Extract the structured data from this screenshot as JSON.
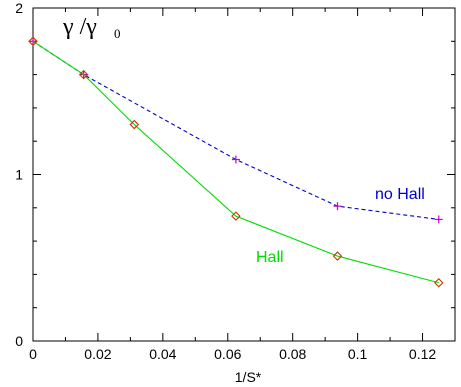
{
  "chart_data": {
    "type": "line",
    "title": "",
    "xlabel": "1/S*",
    "ylabel": "",
    "xlim": [
      0,
      0.13
    ],
    "ylim": [
      0,
      2
    ],
    "xticks": [
      {
        "value": 0,
        "label": "0"
      },
      {
        "value": 0.02,
        "label": "0.02"
      },
      {
        "value": 0.04,
        "label": "0.04"
      },
      {
        "value": 0.06,
        "label": "0.06"
      },
      {
        "value": 0.08,
        "label": "0.08"
      },
      {
        "value": 0.1,
        "label": "0.1"
      },
      {
        "value": 0.12,
        "label": "0.12"
      }
    ],
    "yticks": [
      {
        "value": 0,
        "label": "0"
      },
      {
        "value": 1,
        "label": "1"
      },
      {
        "value": 2,
        "label": "2"
      }
    ],
    "x_minor_step": 0.01,
    "y_minor_step": 0.2,
    "grid": false,
    "series": [
      {
        "name": "no Hall",
        "style": "dashed",
        "color": "#0000cc",
        "marker": "plus",
        "marker_color": "#cc00cc",
        "x": [
          0,
          0.0156,
          0.0625,
          0.0938,
          0.125
        ],
        "y": [
          1.8,
          1.6,
          1.09,
          0.81,
          0.73
        ]
      },
      {
        "name": "Hall",
        "style": "solid",
        "color": "#00dd00",
        "marker": "diamond",
        "marker_color": "#cc3300",
        "x": [
          0,
          0.0156,
          0.0312,
          0.0625,
          0.0938,
          0.125
        ],
        "y": [
          1.8,
          1.6,
          1.3,
          0.75,
          0.51,
          0.35
        ]
      }
    ],
    "annotations": {
      "gamma_main": "γ /γ",
      "gamma_sub": "0",
      "no_hall": "no Hall",
      "hall": "Hall"
    }
  }
}
